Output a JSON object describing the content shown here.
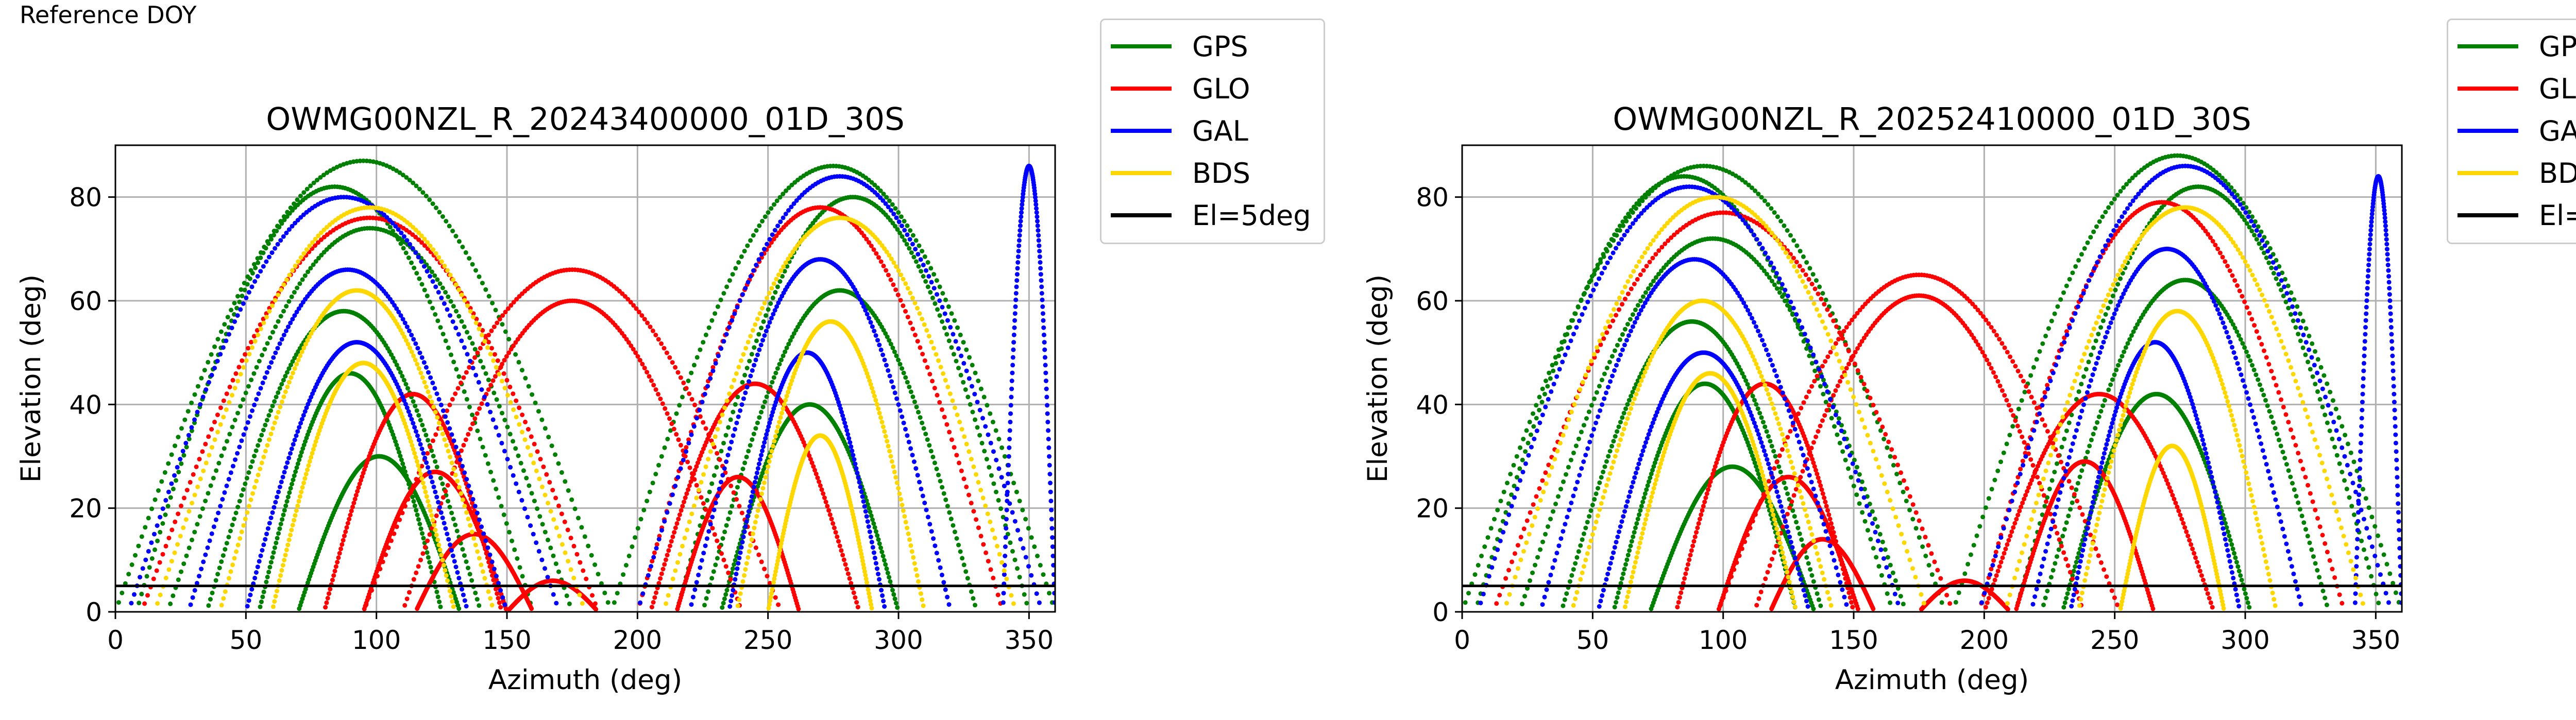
{
  "figure": {
    "title": "Reference DOY"
  },
  "legend_items": [
    {
      "label": "GPS",
      "color": "#008000"
    },
    {
      "label": "GLO",
      "color": "#ff0000"
    },
    {
      "label": "GAL",
      "color": "#0000ff"
    },
    {
      "label": "BDS",
      "color": "#ffd700"
    },
    {
      "label": "El=5deg",
      "color": "#000000"
    }
  ],
  "chart_data": [
    {
      "type": "scatter",
      "title": "OWMG00NZL_R_20243400000_01D_30S",
      "xlabel": "Azimuth (deg)",
      "ylabel": "Elevation (deg)",
      "xlim": [
        0,
        360
      ],
      "ylim": [
        0,
        90
      ],
      "xticks": [
        0,
        50,
        100,
        150,
        200,
        250,
        300,
        350
      ],
      "yticks": [
        0,
        20,
        40,
        60,
        80
      ],
      "grid": true,
      "legend_position": "outside-right",
      "reference_line": {
        "label": "El=5deg",
        "y": 5
      },
      "series": [
        {
          "name": "GPS",
          "color": "#008000",
          "tracks": [
            {
              "az0": 8,
              "az1": 160,
              "peak": 82
            },
            {
              "az0": 20,
              "az1": 175,
              "peak": 74
            },
            {
              "az0": 35,
              "az1": 140,
              "peak": 58
            },
            {
              "az0": 55,
              "az1": 125,
              "peak": 46
            },
            {
              "az0": 70,
              "az1": 132,
              "peak": 30
            },
            {
              "az0": 215,
              "az1": 350,
              "peak": 80
            },
            {
              "az0": 225,
              "az1": 330,
              "peak": 62
            },
            {
              "az0": 232,
              "az1": 300,
              "peak": 40
            },
            {
              "az0": 190,
              "az1": 360,
              "peak": 86
            },
            {
              "az0": 0,
              "az1": 190,
              "peak": 87
            }
          ]
        },
        {
          "name": "GLO",
          "color": "#ff0000",
          "tracks": [
            {
              "az0": 10,
              "az1": 185,
              "peak": 76
            },
            {
              "az0": 95,
              "az1": 255,
              "peak": 66
            },
            {
              "az0": 110,
              "az1": 240,
              "peak": 60
            },
            {
              "az0": 80,
              "az1": 148,
              "peak": 42
            },
            {
              "az0": 95,
              "az1": 150,
              "peak": 27
            },
            {
              "az0": 115,
              "az1": 160,
              "peak": 15
            },
            {
              "az0": 205,
              "az1": 285,
              "peak": 44
            },
            {
              "az0": 215,
              "az1": 262,
              "peak": 26
            },
            {
              "az0": 200,
              "az1": 340,
              "peak": 78
            },
            {
              "az0": 150,
              "az1": 185,
              "peak": 6
            }
          ]
        },
        {
          "name": "GAL",
          "color": "#0000ff",
          "tracks": [
            {
              "az0": 5,
              "az1": 170,
              "peak": 80
            },
            {
              "az0": 28,
              "az1": 150,
              "peak": 66
            },
            {
              "az0": 50,
              "az1": 135,
              "peak": 52
            },
            {
              "az0": 200,
              "az1": 355,
              "peak": 84
            },
            {
              "az0": 220,
              "az1": 320,
              "peak": 68
            },
            {
              "az0": 235,
              "az1": 295,
              "peak": 50
            },
            {
              "az0": 340,
              "az1": 360,
              "peak": 86
            }
          ]
        },
        {
          "name": "BDS",
          "color": "#ffd700",
          "tracks": [
            {
              "az0": 15,
              "az1": 180,
              "peak": 78
            },
            {
              "az0": 40,
              "az1": 145,
              "peak": 62
            },
            {
              "az0": 60,
              "az1": 130,
              "peak": 48
            },
            {
              "az0": 210,
              "az1": 345,
              "peak": 76
            },
            {
              "az0": 238,
              "az1": 310,
              "peak": 56
            },
            {
              "az0": 250,
              "az1": 290,
              "peak": 34
            }
          ]
        }
      ]
    },
    {
      "type": "scatter",
      "title": "OWMG00NZL_R_20252410000_01D_30S",
      "xlabel": "Azimuth (deg)",
      "ylabel": "Elevation (deg)",
      "xlim": [
        0,
        360
      ],
      "ylim": [
        0,
        90
      ],
      "xticks": [
        0,
        50,
        100,
        150,
        200,
        250,
        300,
        350
      ],
      "yticks": [
        0,
        20,
        40,
        60,
        80
      ],
      "grid": true,
      "legend_position": "outside-right",
      "reference_line": {
        "label": "El=5deg",
        "y": 5
      },
      "series": [
        {
          "name": "GPS",
          "color": "#008000",
          "tracks": [
            {
              "az0": 5,
              "az1": 165,
              "peak": 84
            },
            {
              "az0": 22,
              "az1": 170,
              "peak": 72
            },
            {
              "az0": 38,
              "az1": 138,
              "peak": 56
            },
            {
              "az0": 58,
              "az1": 128,
              "peak": 44
            },
            {
              "az0": 72,
              "az1": 135,
              "peak": 28
            },
            {
              "az0": 212,
              "az1": 352,
              "peak": 82
            },
            {
              "az0": 222,
              "az1": 332,
              "peak": 64
            },
            {
              "az0": 230,
              "az1": 302,
              "peak": 42
            },
            {
              "az0": 188,
              "az1": 360,
              "peak": 88
            },
            {
              "az0": 0,
              "az1": 185,
              "peak": 86
            }
          ]
        },
        {
          "name": "GLO",
          "color": "#ff0000",
          "tracks": [
            {
              "az0": 12,
              "az1": 188,
              "peak": 77
            },
            {
              "az0": 98,
              "az1": 252,
              "peak": 65
            },
            {
              "az0": 112,
              "az1": 238,
              "peak": 61
            },
            {
              "az0": 82,
              "az1": 150,
              "peak": 44
            },
            {
              "az0": 98,
              "az1": 152,
              "peak": 26
            },
            {
              "az0": 118,
              "az1": 158,
              "peak": 14
            },
            {
              "az0": 200,
              "az1": 288,
              "peak": 42
            },
            {
              "az0": 212,
              "az1": 265,
              "peak": 29
            },
            {
              "az0": 198,
              "az1": 338,
              "peak": 79
            },
            {
              "az0": 175,
              "az1": 210,
              "peak": 6
            }
          ]
        },
        {
          "name": "GAL",
          "color": "#0000ff",
          "tracks": [
            {
              "az0": 6,
              "az1": 168,
              "peak": 82
            },
            {
              "az0": 30,
              "az1": 148,
              "peak": 68
            },
            {
              "az0": 52,
              "az1": 133,
              "peak": 50
            },
            {
              "az0": 198,
              "az1": 356,
              "peak": 86
            },
            {
              "az0": 218,
              "az1": 322,
              "peak": 70
            },
            {
              "az0": 233,
              "az1": 298,
              "peak": 52
            },
            {
              "az0": 342,
              "az1": 360,
              "peak": 84
            }
          ]
        },
        {
          "name": "BDS",
          "color": "#ffd700",
          "tracks": [
            {
              "az0": 16,
              "az1": 178,
              "peak": 80
            },
            {
              "az0": 42,
              "az1": 142,
              "peak": 60
            },
            {
              "az0": 62,
              "az1": 128,
              "peak": 46
            },
            {
              "az0": 208,
              "az1": 346,
              "peak": 78
            },
            {
              "az0": 236,
              "az1": 312,
              "peak": 58
            },
            {
              "az0": 252,
              "az1": 292,
              "peak": 32
            }
          ]
        }
      ]
    }
  ]
}
